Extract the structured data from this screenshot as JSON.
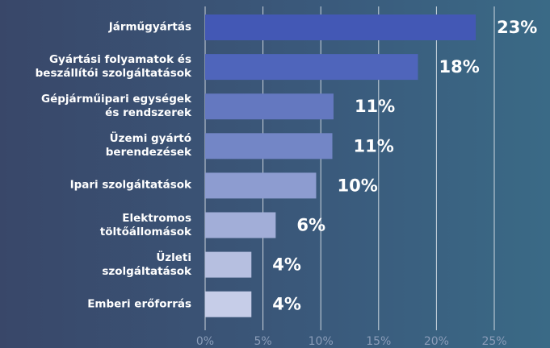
{
  "chart_data": {
    "type": "barh",
    "categories": [
      "Járműgyártás",
      "Gyártási folyamatok és\nbeszállítói szolgáltatások",
      "Gépjárműipari egységek\nés rendszerek",
      "Üzemi gyártó\nberendezések",
      "Ipari szolgáltatások",
      "Elektromos\ntöltőállomások",
      "Üzleti\nszolgáltatások",
      "Emberi erőforrás"
    ],
    "values": [
      23.4,
      18.4,
      11.1,
      11,
      9.6,
      6.1,
      4,
      4
    ],
    "value_labels": [
      "23%",
      "18%",
      "11%",
      "11%",
      "10%",
      "6%",
      "4%",
      "4%"
    ],
    "colors": [
      "#4358b5",
      "#4f65bb",
      "#6478c0",
      "#7386c6",
      "#8d9cd0",
      "#a2aed8",
      "#b6bfe0",
      "#c6cde8"
    ],
    "xlim": [
      0,
      25
    ],
    "xticks": [
      {
        "value": 0,
        "label": "0%"
      },
      {
        "value": 5,
        "label": "5%"
      },
      {
        "value": 10,
        "label": "10%"
      },
      {
        "value": 15,
        "label": "15%"
      },
      {
        "value": 20,
        "label": "20%"
      },
      {
        "value": 25,
        "label": "25%"
      }
    ],
    "grid": true
  }
}
